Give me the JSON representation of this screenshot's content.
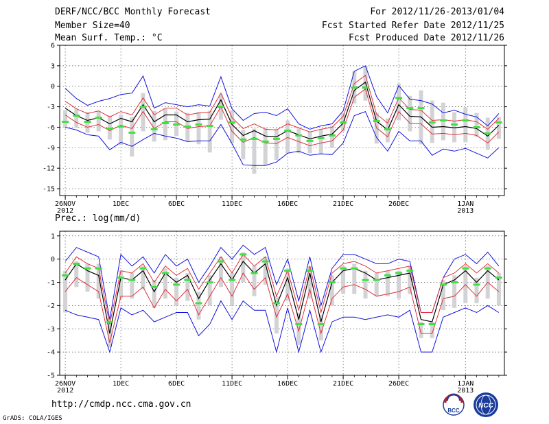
{
  "header": {
    "title": "DERF/NCC/BCC Monthly Forecast",
    "member": "Member Size=40",
    "variable": "Mean Surf. Temp.: °C",
    "period": "For 2012/11/26-2013/01/04",
    "started": "Fcst Started Refer Date 2012/11/25",
    "produced": "Fcst Produced Date 2012/11/26"
  },
  "footer": {
    "url": "http://cmdp.ncc.cma.gov.cn",
    "credit": "GrADS: COLA/IGES",
    "logo_bcc": "BCC",
    "logo_ncc": "NCC"
  },
  "colors": {
    "mean": "#000000",
    "spread": "#e0303a",
    "range": "#1010e0",
    "ensemble_box": "#d3d3d6",
    "median": "#40e040"
  },
  "chart_data": [
    {
      "type": "line",
      "id": "temp",
      "title": "Mean Surf. Temp.: °C",
      "ylim": [
        -16,
        6
      ],
      "yticks": [
        6,
        3,
        0,
        -3,
        -6,
        -9,
        -12,
        -15
      ],
      "xlim": [
        -0.5,
        39.5
      ],
      "xticks": [
        {
          "x": 0,
          "label": "26NOV",
          "sub": "2012"
        },
        {
          "x": 5,
          "label": "1DEC"
        },
        {
          "x": 10,
          "label": "6DEC"
        },
        {
          "x": 15,
          "label": "11DEC"
        },
        {
          "x": 20,
          "label": "16DEC"
        },
        {
          "x": 25,
          "label": "21DEC"
        },
        {
          "x": 30,
          "label": "26DEC"
        },
        {
          "x": 36,
          "label": "1JAN",
          "sub": "2013"
        }
      ],
      "series": [
        {
          "name": "mean",
          "values": [
            -3.2,
            -4.3,
            -5.0,
            -4.6,
            -5.5,
            -4.7,
            -5.2,
            -2.7,
            -5.2,
            -4.2,
            -4.2,
            -5.2,
            -4.9,
            -4.8,
            -2.0,
            -5.6,
            -7.2,
            -6.5,
            -7.3,
            -7.4,
            -6.5,
            -7.1,
            -7.7,
            -7.3,
            -7.0,
            -5.4,
            -0.6,
            0.6,
            -5.1,
            -6.4,
            -2.7,
            -4.4,
            -4.5,
            -6.0,
            -5.9,
            -6.1,
            -5.9,
            -6.2,
            -7.3,
            -5.7
          ]
        },
        {
          "name": "upper",
          "values": [
            -2.2,
            -3.3,
            -4.0,
            -3.6,
            -4.5,
            -3.7,
            -4.2,
            -1.7,
            -4.2,
            -3.2,
            -3.2,
            -4.2,
            -3.9,
            -3.8,
            -1.0,
            -4.6,
            -6.2,
            -5.5,
            -6.3,
            -6.4,
            -5.5,
            -6.1,
            -6.7,
            -6.3,
            -6.0,
            -4.4,
            0.4,
            1.6,
            -4.1,
            -5.4,
            -1.7,
            -3.4,
            -3.5,
            -5.0,
            -4.9,
            -5.1,
            -4.9,
            -5.2,
            -6.3,
            -4.7
          ]
        },
        {
          "name": "lower",
          "values": [
            -4.2,
            -5.3,
            -6.0,
            -5.6,
            -6.5,
            -5.7,
            -6.2,
            -3.7,
            -6.2,
            -5.2,
            -5.2,
            -6.2,
            -5.9,
            -5.8,
            -3.0,
            -6.6,
            -8.2,
            -7.5,
            -8.3,
            -8.4,
            -7.5,
            -8.1,
            -8.7,
            -8.3,
            -8.0,
            -6.4,
            -1.6,
            -0.4,
            -6.1,
            -7.4,
            -3.7,
            -5.4,
            -5.5,
            -7.0,
            -6.9,
            -7.1,
            -6.9,
            -7.2,
            -8.3,
            -6.7
          ]
        },
        {
          "name": "max",
          "values": [
            -0.3,
            -1.8,
            -2.8,
            -2.2,
            -1.8,
            -1.2,
            -1.0,
            1.5,
            -3.2,
            -2.4,
            -2.7,
            -3.0,
            -2.7,
            -2.9,
            1.4,
            -3.3,
            -5.0,
            -4.0,
            -3.8,
            -4.3,
            -3.3,
            -5.5,
            -6.3,
            -5.8,
            -5.5,
            -3.6,
            2.2,
            3.0,
            -1.5,
            -3.9,
            0.1,
            -1.9,
            -2.1,
            -2.6,
            -3.9,
            -3.5,
            -4.1,
            -4.5,
            -5.8,
            -4.0
          ]
        },
        {
          "name": "min",
          "values": [
            -6.0,
            -6.4,
            -7.1,
            -7.3,
            -9.3,
            -8.2,
            -8.8,
            -7.8,
            -6.9,
            -7.3,
            -7.6,
            -8.1,
            -8.0,
            -8.0,
            -5.6,
            -8.4,
            -11.5,
            -11.6,
            -11.6,
            -11.1,
            -9.8,
            -9.5,
            -10.1,
            -9.9,
            -10.0,
            -8.3,
            -4.3,
            -3.7,
            -7.5,
            -9.5,
            -6.6,
            -8.0,
            -8.0,
            -10.1,
            -9.2,
            -9.5,
            -9.1,
            -9.8,
            -10.5,
            -9.0
          ]
        },
        {
          "name": "median",
          "values": [
            -5.2,
            -4.3,
            -5.2,
            -4.6,
            -6.2,
            -5.9,
            -6.8,
            -3.0,
            -6.3,
            -5.4,
            -5.6,
            -5.9,
            -5.6,
            -5.8,
            -3.0,
            -5.3,
            -7.8,
            -7.7,
            -8.1,
            -7.7,
            -6.5,
            -7.2,
            -8.0,
            -7.6,
            -7.2,
            -5.3,
            -0.2,
            -0.2,
            -5.1,
            -6.3,
            -1.7,
            -3.2,
            -3.2,
            -5.3,
            -5.0,
            -5.6,
            -5.0,
            -6.0,
            -6.9,
            -5.3
          ]
        },
        {
          "name": "box_top",
          "values": [
            -3.5,
            -3.3,
            -3.8,
            -3.6,
            -4.3,
            -4.2,
            -4.5,
            -1.0,
            -3.6,
            -3.3,
            -3.7,
            -3.9,
            -3.8,
            -3.6,
            -1.2,
            -3.5,
            -6.4,
            -6.2,
            -6.1,
            -6.2,
            -5.0,
            -6.2,
            -6.6,
            -6.3,
            -5.8,
            -4.0,
            2.2,
            3.0,
            -3.9,
            -4.7,
            0.4,
            -1.4,
            -0.6,
            -2.1,
            -2.4,
            -3.8,
            -3.1,
            -3.9,
            -4.6,
            -4.5
          ]
        },
        {
          "name": "box_bottom",
          "values": [
            -6.1,
            -6.1,
            -6.8,
            -6.6,
            -7.8,
            -8.6,
            -10.3,
            -6.6,
            -8.1,
            -7.9,
            -7.3,
            -8.1,
            -8.5,
            -9.7,
            -4.9,
            -8.3,
            -10.7,
            -12.8,
            -11.5,
            -10.8,
            -9.8,
            -9.8,
            -9.8,
            -10.0,
            -9.0,
            -6.6,
            -2.5,
            -2.1,
            -8.4,
            -8.2,
            -5.0,
            -6.6,
            -8.5,
            -8.3,
            -7.9,
            -8.2,
            -8.2,
            -7.4,
            -9.3,
            -7.7
          ]
        }
      ]
    },
    {
      "type": "line",
      "id": "prec",
      "title": "Prec.: log(mm/d)",
      "ylim": [
        -5,
        1.2
      ],
      "yticks": [
        1,
        0,
        -1,
        -2,
        -3,
        -4,
        -5
      ],
      "xlim": [
        -0.5,
        39.5
      ],
      "xticks": [
        {
          "x": 0,
          "label": "26NOV",
          "sub": "2012"
        },
        {
          "x": 5,
          "label": "1DEC"
        },
        {
          "x": 10,
          "label": "6DEC"
        },
        {
          "x": 15,
          "label": "11DEC"
        },
        {
          "x": 20,
          "label": "16DEC"
        },
        {
          "x": 25,
          "label": "21DEC"
        },
        {
          "x": 30,
          "label": "26DEC"
        },
        {
          "x": 36,
          "label": "1JAN",
          "sub": "2013"
        }
      ],
      "series": [
        {
          "name": "mean",
          "values": [
            -0.9,
            -0.2,
            -0.5,
            -0.7,
            -3.2,
            -0.8,
            -0.9,
            -0.5,
            -1.4,
            -0.6,
            -1.0,
            -0.7,
            -1.7,
            -0.9,
            -0.2,
            -0.9,
            -0.1,
            -0.6,
            -0.2,
            -2.0,
            -0.8,
            -2.6,
            -0.6,
            -2.7,
            -1.0,
            -0.5,
            -0.4,
            -0.6,
            -0.9,
            -0.8,
            -0.7,
            -0.6,
            -2.6,
            -2.7,
            -1.1,
            -0.9,
            -0.5,
            -1.0,
            -0.5,
            -0.9
          ]
        },
        {
          "name": "upper",
          "values": [
            -0.6,
            0.1,
            -0.2,
            -0.4,
            -2.8,
            -0.5,
            -0.6,
            -0.2,
            -1.0,
            -0.3,
            -0.7,
            -0.4,
            -1.3,
            -0.6,
            0.1,
            -0.6,
            0.2,
            -0.3,
            0.1,
            -1.6,
            -0.5,
            -2.2,
            -0.3,
            -2.3,
            -0.6,
            -0.2,
            -0.1,
            -0.3,
            -0.6,
            -0.5,
            -0.4,
            -0.3,
            -2.3,
            -2.3,
            -0.8,
            -0.6,
            -0.2,
            -0.6,
            -0.2,
            -0.6
          ]
        },
        {
          "name": "lower",
          "values": [
            -1.4,
            -0.8,
            -1.1,
            -1.4,
            -3.6,
            -1.6,
            -1.6,
            -1.2,
            -2.1,
            -1.3,
            -1.8,
            -1.3,
            -2.4,
            -1.6,
            -0.8,
            -1.6,
            -0.6,
            -1.3,
            -0.8,
            -2.5,
            -1.5,
            -3.1,
            -1.3,
            -3.2,
            -1.7,
            -1.2,
            -1.1,
            -1.3,
            -1.6,
            -1.5,
            -1.4,
            -1.2,
            -3.2,
            -3.2,
            -1.7,
            -1.6,
            -1.1,
            -1.6,
            -1.0,
            -1.4
          ]
        },
        {
          "name": "max",
          "values": [
            -0.1,
            0.5,
            0.3,
            0.1,
            -2.6,
            0.2,
            -0.3,
            0.1,
            -0.6,
            0.2,
            -0.3,
            0.0,
            -1.0,
            -0.3,
            0.5,
            0.0,
            0.6,
            0.2,
            0.5,
            -1.1,
            0.0,
            -1.8,
            0.1,
            -2.0,
            -0.4,
            0.2,
            0.2,
            0.0,
            -0.2,
            -0.2,
            0.0,
            -0.1,
            -2.3,
            -2.3,
            -0.8,
            0.0,
            0.2,
            -0.2,
            0.3,
            -0.3
          ]
        },
        {
          "name": "min",
          "values": [
            -2.2,
            -2.4,
            -2.5,
            -2.6,
            -4.0,
            -2.1,
            -2.4,
            -2.2,
            -2.7,
            -2.5,
            -2.3,
            -2.3,
            -3.3,
            -2.8,
            -1.8,
            -2.6,
            -1.8,
            -2.2,
            -2.2,
            -4.0,
            -2.1,
            -4.0,
            -2.2,
            -4.0,
            -2.7,
            -2.5,
            -2.5,
            -2.6,
            -2.5,
            -2.4,
            -2.5,
            -2.2,
            -4.0,
            -4.0,
            -2.5,
            -2.3,
            -2.1,
            -2.3,
            -2.0,
            -2.3
          ]
        },
        {
          "name": "median",
          "values": [
            -0.7,
            -0.2,
            -0.4,
            -0.4,
            -2.7,
            -0.8,
            -0.9,
            -0.4,
            -1.2,
            -0.6,
            -1.1,
            -0.9,
            -1.9,
            -1.0,
            -0.1,
            -0.9,
            0.2,
            -0.6,
            -0.1,
            -1.9,
            -0.5,
            -2.8,
            -0.5,
            -2.8,
            -1.0,
            -0.4,
            -0.4,
            -0.9,
            -0.9,
            -0.7,
            -0.6,
            -0.5,
            -2.8,
            -2.8,
            -1.1,
            -1.0,
            -0.4,
            -1.1,
            -0.4,
            -0.8
          ]
        },
        {
          "name": "box_top",
          "values": [
            -0.5,
            -0.1,
            -0.2,
            -0.2,
            -2.7,
            -0.5,
            -0.6,
            -0.3,
            -0.9,
            -0.4,
            -0.8,
            -0.6,
            -1.4,
            -0.7,
            0.1,
            -0.6,
            0.3,
            -0.3,
            0.1,
            -1.6,
            -0.4,
            -2.3,
            -0.3,
            -2.4,
            -0.7,
            -0.3,
            -0.2,
            -0.5,
            -0.6,
            -0.5,
            -0.5,
            -0.3,
            -2.7,
            -2.7,
            -0.9,
            -0.7,
            -0.3,
            -0.8,
            -0.3,
            -0.6
          ]
        },
        {
          "name": "box_bottom",
          "values": [
            -2.3,
            -1.2,
            -1.4,
            -1.7,
            -3.8,
            -1.7,
            -1.7,
            -1.3,
            -2.1,
            -1.7,
            -2.0,
            -1.8,
            -2.6,
            -2.0,
            -1.2,
            -2.0,
            -1.0,
            -1.6,
            -1.1,
            -3.2,
            -1.8,
            -3.7,
            -1.7,
            -3.5,
            -2.0,
            -1.5,
            -1.5,
            -1.7,
            -1.6,
            -1.6,
            -1.7,
            -1.5,
            -3.4,
            -3.4,
            -2.2,
            -2.1,
            -1.9,
            -1.9,
            -1.7,
            -2.0
          ]
        }
      ]
    }
  ]
}
